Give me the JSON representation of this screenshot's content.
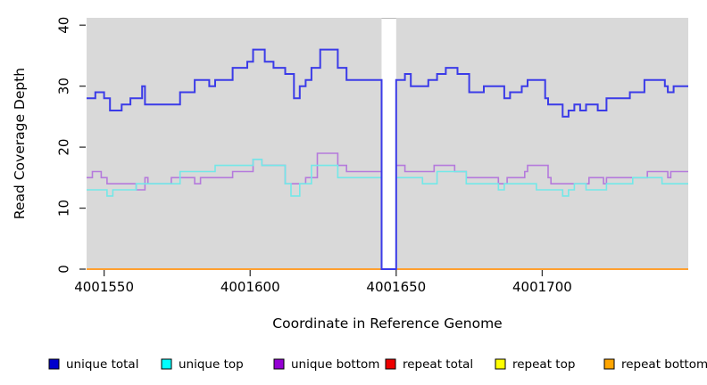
{
  "chart_data": {
    "type": "line",
    "subtype": "step-coverage-plot",
    "title": "",
    "xlabel": "Coordinate in Reference Genome",
    "ylabel": "Read Coverage Depth",
    "xticks": [
      4001550,
      4001600,
      4001650,
      4001700
    ],
    "xtick_labels": [
      "4001550",
      "4001600",
      "4001650",
      "4001700"
    ],
    "yticks": [
      0,
      10,
      20,
      30,
      40
    ],
    "ytick_labels": [
      "0",
      "10",
      "20",
      "30",
      "40"
    ],
    "xlim": [
      4001544,
      4001750
    ],
    "ylim": [
      0,
      41.2
    ],
    "grid": false,
    "plot_bg_color": "#d9d9d9",
    "gap_region": {
      "start": 4001645,
      "end": 4001650,
      "color": "#ffffff"
    },
    "legend_position": "bottom",
    "x_end": 4001750,
    "series": [
      {
        "name": "unique_total",
        "label": "unique total",
        "legend_color": "#0000cd",
        "line_color": "#3b3be8",
        "line_width": 2,
        "steps": [
          [
            4001544,
            28
          ],
          [
            4001547,
            29
          ],
          [
            4001550,
            28
          ],
          [
            4001552,
            26
          ],
          [
            4001556,
            27
          ],
          [
            4001559,
            28
          ],
          [
            4001563,
            30
          ],
          [
            4001564,
            27
          ],
          [
            4001576,
            29
          ],
          [
            4001581,
            31
          ],
          [
            4001586,
            30
          ],
          [
            4001588,
            31
          ],
          [
            4001594,
            33
          ],
          [
            4001599,
            34
          ],
          [
            4001601,
            36
          ],
          [
            4001605,
            34
          ],
          [
            4001608,
            33
          ],
          [
            4001612,
            32
          ],
          [
            4001615,
            28
          ],
          [
            4001617,
            30
          ],
          [
            4001619,
            31
          ],
          [
            4001621,
            33
          ],
          [
            4001624,
            36
          ],
          [
            4001630,
            33
          ],
          [
            4001633,
            31
          ],
          [
            4001645,
            0
          ],
          [
            4001650,
            31
          ],
          [
            4001653,
            32
          ],
          [
            4001655,
            30
          ],
          [
            4001661,
            31
          ],
          [
            4001664,
            32
          ],
          [
            4001667,
            33
          ],
          [
            4001671,
            32
          ],
          [
            4001675,
            29
          ],
          [
            4001680,
            30
          ],
          [
            4001687,
            28
          ],
          [
            4001689,
            29
          ],
          [
            4001693,
            30
          ],
          [
            4001695,
            31
          ],
          [
            4001701,
            28
          ],
          [
            4001702,
            27
          ],
          [
            4001707,
            25
          ],
          [
            4001709,
            26
          ],
          [
            4001711,
            27
          ],
          [
            4001713,
            26
          ],
          [
            4001715,
            27
          ],
          [
            4001719,
            26
          ],
          [
            4001722,
            28
          ],
          [
            4001730,
            29
          ],
          [
            4001735,
            31
          ],
          [
            4001742,
            30
          ],
          [
            4001743,
            29
          ],
          [
            4001745,
            30
          ]
        ]
      },
      {
        "name": "unique_top",
        "label": "unique top",
        "legend_color": "#00ffff",
        "line_color": "#73e8e8",
        "line_width": 1.6,
        "steps": [
          [
            4001544,
            13
          ],
          [
            4001551,
            12
          ],
          [
            4001553,
            13
          ],
          [
            4001561,
            14
          ],
          [
            4001576,
            16
          ],
          [
            4001588,
            17
          ],
          [
            4001601,
            18
          ],
          [
            4001604,
            17
          ],
          [
            4001612,
            14
          ],
          [
            4001614,
            12
          ],
          [
            4001617,
            14
          ],
          [
            4001621,
            17
          ],
          [
            4001630,
            15
          ],
          [
            4001645,
            0
          ],
          [
            4001650,
            15
          ],
          [
            4001659,
            14
          ],
          [
            4001664,
            16
          ],
          [
            4001674,
            14
          ],
          [
            4001685,
            13
          ],
          [
            4001687,
            14
          ],
          [
            4001698,
            13
          ],
          [
            4001707,
            12
          ],
          [
            4001709,
            13
          ],
          [
            4001711,
            14
          ],
          [
            4001715,
            13
          ],
          [
            4001722,
            14
          ],
          [
            4001731,
            15
          ],
          [
            4001741,
            14
          ]
        ]
      },
      {
        "name": "unique_bottom",
        "label": "unique bottom",
        "legend_color": "#9400d3",
        "line_color": "#b57adc",
        "line_width": 1.6,
        "steps": [
          [
            4001544,
            15
          ],
          [
            4001546,
            16
          ],
          [
            4001549,
            15
          ],
          [
            4001551,
            14
          ],
          [
            4001561,
            13
          ],
          [
            4001564,
            15
          ],
          [
            4001565,
            14
          ],
          [
            4001573,
            15
          ],
          [
            4001581,
            14
          ],
          [
            4001583,
            15
          ],
          [
            4001594,
            16
          ],
          [
            4001601,
            18
          ],
          [
            4001604,
            17
          ],
          [
            4001612,
            14
          ],
          [
            4001619,
            15
          ],
          [
            4001623,
            19
          ],
          [
            4001630,
            17
          ],
          [
            4001633,
            16
          ],
          [
            4001645,
            0
          ],
          [
            4001650,
            17
          ],
          [
            4001653,
            16
          ],
          [
            4001663,
            17
          ],
          [
            4001670,
            16
          ],
          [
            4001674,
            15
          ],
          [
            4001685,
            14
          ],
          [
            4001688,
            15
          ],
          [
            4001694,
            16
          ],
          [
            4001695,
            17
          ],
          [
            4001702,
            15
          ],
          [
            4001703,
            14
          ],
          [
            4001716,
            15
          ],
          [
            4001721,
            14
          ],
          [
            4001722,
            15
          ],
          [
            4001736,
            16
          ],
          [
            4001743,
            15
          ],
          [
            4001744,
            16
          ]
        ]
      },
      {
        "name": "repeat_total",
        "label": "repeat total",
        "legend_color": "#ee0000",
        "line_color": "#ee0000",
        "line_width": 1.5,
        "steps": [
          [
            4001544,
            0
          ]
        ]
      },
      {
        "name": "repeat_top",
        "label": "repeat top",
        "legend_color": "#ffff00",
        "line_color": "#ffff00",
        "line_width": 1.5,
        "steps": [
          [
            4001544,
            0
          ]
        ]
      },
      {
        "name": "repeat_bottom",
        "label": "repeat bottom",
        "legend_color": "#ffa500",
        "line_color": "#ffa030",
        "line_width": 2,
        "steps": [
          [
            4001544,
            0
          ]
        ]
      }
    ],
    "draw_order": [
      3,
      4,
      5,
      2,
      1,
      0
    ]
  }
}
